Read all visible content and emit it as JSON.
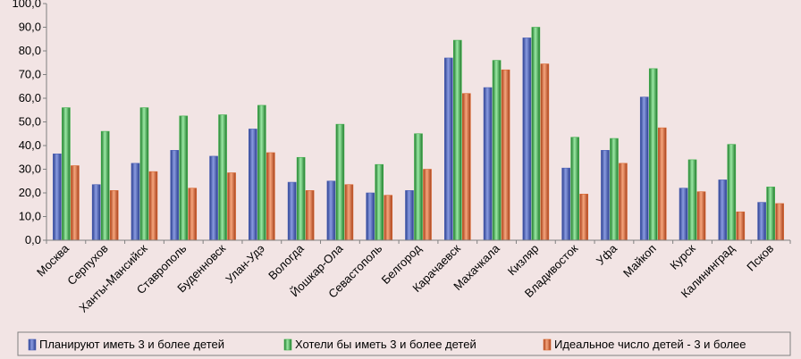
{
  "chart_data": {
    "type": "bar",
    "title": "",
    "xlabel": "",
    "ylabel": "",
    "ylim": [
      0,
      100
    ],
    "ytick_step": 10,
    "ytick_labels": [
      "0,0",
      "10,0",
      "20,0",
      "30,0",
      "40,0",
      "50,0",
      "60,0",
      "70,0",
      "80,0",
      "90,0",
      "100,0"
    ],
    "grid": false,
    "legend_position": "bottom",
    "categories": [
      "Москва",
      "Серпухов",
      "Ханты-Мансийск",
      "Ставрополь",
      "Буденновск",
      "Улан-Удэ",
      "Вологда",
      "Йошкар-Ола",
      "Севастополь",
      "Белгород",
      "Карачаевск",
      "Махачкала",
      "Кизляр",
      "Владивосток",
      "Уфа",
      "Майкоп",
      "Курск",
      "Калининград",
      "Псков"
    ],
    "series": [
      {
        "name": "Планируют иметь 3 и более детей",
        "color": "#4a5fb5",
        "values": [
          36.5,
          23.5,
          32.5,
          38.0,
          35.5,
          47.0,
          24.5,
          25.0,
          20.0,
          21.0,
          77.0,
          64.5,
          85.5,
          30.5,
          38.0,
          60.5,
          22.0,
          25.5,
          16.0
        ]
      },
      {
        "name": "Хотели бы иметь 3 и более детей",
        "color": "#3db04a",
        "values": [
          56.0,
          46.0,
          56.0,
          52.5,
          53.0,
          57.0,
          35.0,
          49.0,
          32.0,
          45.0,
          84.5,
          76.0,
          90.0,
          43.5,
          43.0,
          72.5,
          34.0,
          40.5,
          22.5
        ]
      },
      {
        "name": "Идеальное число детей - 3 и более",
        "color": "#d9662e",
        "values": [
          31.5,
          21.0,
          29.0,
          22.0,
          28.5,
          37.0,
          21.0,
          23.5,
          19.0,
          30.0,
          62.0,
          72.0,
          74.5,
          19.5,
          32.5,
          47.5,
          20.5,
          12.0,
          15.5
        ]
      }
    ]
  }
}
